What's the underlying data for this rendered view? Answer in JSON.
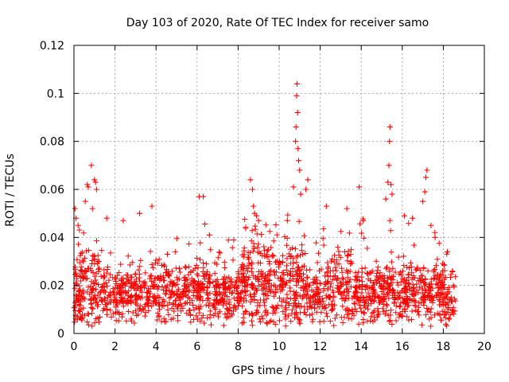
{
  "chart_data": {
    "type": "scatter",
    "title": "Day 103 of 2020, Rate Of TEC Index for receiver samo",
    "xlabel": "GPS time / hours",
    "ylabel": "ROTI / TECUs",
    "xlim": [
      0,
      20
    ],
    "ylim": [
      0,
      0.12
    ],
    "xticks": [
      0,
      2,
      4,
      6,
      8,
      10,
      12,
      14,
      16,
      18,
      20
    ],
    "yticks": [
      0,
      0.02,
      0.04,
      0.06,
      0.08,
      0.1,
      0.12
    ],
    "xtick_labels": [
      "0",
      "2",
      "4",
      "6",
      "8",
      "10",
      "12",
      "14",
      "16",
      "18",
      "20"
    ],
    "ytick_labels": [
      "0",
      "0.02",
      "0.04",
      "0.06",
      "0.08",
      "0.1",
      "0.12"
    ],
    "grid": true,
    "marker": "+",
    "color": "#ff0000",
    "data_range_hours": [
      0,
      18.6
    ],
    "series": [
      {
        "name": "ROTI",
        "highlight_points": [
          {
            "x": 0.05,
            "y": 0.052
          },
          {
            "x": 0.1,
            "y": 0.048
          },
          {
            "x": 0.2,
            "y": 0.045
          },
          {
            "x": 0.55,
            "y": 0.055
          },
          {
            "x": 0.65,
            "y": 0.062
          },
          {
            "x": 0.7,
            "y": 0.061
          },
          {
            "x": 0.85,
            "y": 0.07
          },
          {
            "x": 0.9,
            "y": 0.052
          },
          {
            "x": 1.0,
            "y": 0.064
          },
          {
            "x": 1.05,
            "y": 0.063
          },
          {
            "x": 1.1,
            "y": 0.06
          },
          {
            "x": 1.6,
            "y": 0.048
          },
          {
            "x": 2.4,
            "y": 0.047
          },
          {
            "x": 3.2,
            "y": 0.05
          },
          {
            "x": 3.8,
            "y": 0.053
          },
          {
            "x": 6.1,
            "y": 0.057
          },
          {
            "x": 6.3,
            "y": 0.057
          },
          {
            "x": 6.6,
            "y": 0.041
          },
          {
            "x": 8.6,
            "y": 0.064
          },
          {
            "x": 8.7,
            "y": 0.06
          },
          {
            "x": 8.75,
            "y": 0.053
          },
          {
            "x": 8.8,
            "y": 0.05
          },
          {
            "x": 8.9,
            "y": 0.049
          },
          {
            "x": 9.0,
            "y": 0.047
          },
          {
            "x": 10.4,
            "y": 0.047
          },
          {
            "x": 10.7,
            "y": 0.061
          },
          {
            "x": 10.8,
            "y": 0.08
          },
          {
            "x": 10.82,
            "y": 0.086
          },
          {
            "x": 10.85,
            "y": 0.099
          },
          {
            "x": 10.87,
            "y": 0.104
          },
          {
            "x": 10.9,
            "y": 0.092
          },
          {
            "x": 10.92,
            "y": 0.077
          },
          {
            "x": 10.95,
            "y": 0.072
          },
          {
            "x": 11.0,
            "y": 0.068
          },
          {
            "x": 11.05,
            "y": 0.058
          },
          {
            "x": 11.3,
            "y": 0.06
          },
          {
            "x": 11.4,
            "y": 0.064
          },
          {
            "x": 12.3,
            "y": 0.053
          },
          {
            "x": 13.3,
            "y": 0.052
          },
          {
            "x": 13.9,
            "y": 0.061
          },
          {
            "x": 14.1,
            "y": 0.047
          },
          {
            "x": 15.2,
            "y": 0.056
          },
          {
            "x": 15.3,
            "y": 0.063
          },
          {
            "x": 15.35,
            "y": 0.07
          },
          {
            "x": 15.38,
            "y": 0.08
          },
          {
            "x": 15.4,
            "y": 0.086
          },
          {
            "x": 15.45,
            "y": 0.062
          },
          {
            "x": 15.5,
            "y": 0.058
          },
          {
            "x": 16.1,
            "y": 0.049
          },
          {
            "x": 16.5,
            "y": 0.048
          },
          {
            "x": 17.0,
            "y": 0.055
          },
          {
            "x": 17.1,
            "y": 0.059
          },
          {
            "x": 17.15,
            "y": 0.065
          },
          {
            "x": 17.2,
            "y": 0.068
          },
          {
            "x": 17.4,
            "y": 0.045
          },
          {
            "x": 17.6,
            "y": 0.04
          },
          {
            "x": 18.2,
            "y": 0.034
          }
        ],
        "background_band": {
          "x_start": 0,
          "x_end": 18.6,
          "y_typical_low": 0.005,
          "y_typical_high": 0.035
        }
      }
    ]
  }
}
